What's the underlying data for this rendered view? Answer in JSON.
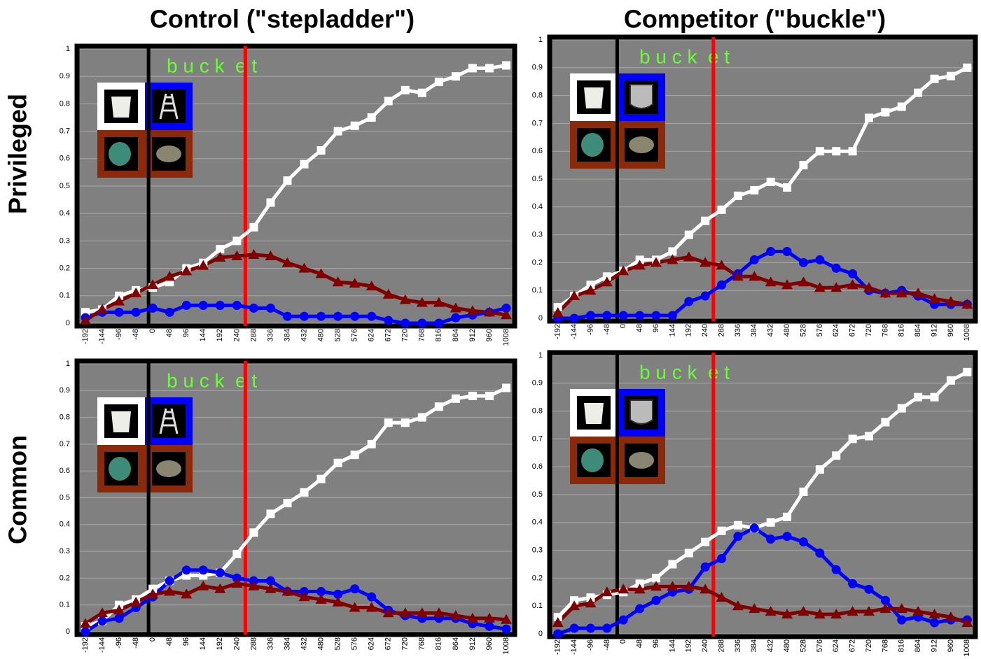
{
  "column_titles": [
    "Control (\"stepladder\")",
    "Competitor (\"buckle\")"
  ],
  "row_labels": [
    "Privileged",
    "Common"
  ],
  "chart_data": [
    {
      "type": "line",
      "x": [
        -192,
        -144,
        -96,
        -48,
        0,
        48,
        96,
        144,
        192,
        240,
        288,
        336,
        384,
        432,
        480,
        528,
        576,
        624,
        672,
        720,
        768,
        816,
        864,
        912,
        960,
        1008
      ],
      "ylim": [
        0,
        1
      ],
      "yticks": [
        0,
        0.1,
        0.2,
        0.3,
        0.4,
        0.5,
        0.6,
        0.7,
        0.8,
        0.9,
        1
      ],
      "grid": true,
      "annotation": {
        "text": "b u c k  e t",
        "color": "#66ff33"
      },
      "vlines": [
        {
          "x": -12,
          "color": "#000000"
        },
        {
          "x": 264,
          "color": "#ff0000"
        }
      ],
      "series": [
        {
          "color": "#ffffff",
          "marker": "square",
          "values": [
            0.04,
            0.05,
            0.1,
            0.12,
            0.13,
            0.15,
            0.2,
            0.22,
            0.27,
            0.3,
            0.35,
            0.44,
            0.52,
            0.58,
            0.63,
            0.7,
            0.72,
            0.75,
            0.81,
            0.85,
            0.84,
            0.88,
            0.9,
            0.93,
            0.93,
            0.94
          ]
        },
        {
          "color": "#0000ff",
          "marker": "circle",
          "values": [
            0.02,
            0.04,
            0.04,
            0.04,
            0.055,
            0.04,
            0.065,
            0.065,
            0.065,
            0.065,
            0.055,
            0.055,
            0.025,
            0.025,
            0.025,
            0.025,
            0.025,
            0.025,
            0.01,
            0,
            0,
            0,
            0.02,
            0.03,
            0.04,
            0.055
          ]
        },
        {
          "color": "#800000",
          "marker": "triangle",
          "values": [
            0.01,
            0.05,
            0.08,
            0.11,
            0.14,
            0.17,
            0.19,
            0.21,
            0.24,
            0.245,
            0.25,
            0.245,
            0.22,
            0.2,
            0.18,
            0.15,
            0.145,
            0.135,
            0.105,
            0.085,
            0.075,
            0.075,
            0.055,
            0.045,
            0.04,
            0.03
          ]
        }
      ]
    },
    {
      "type": "line",
      "x": [
        -192,
        -144,
        -96,
        -48,
        0,
        48,
        96,
        144,
        192,
        240,
        288,
        336,
        384,
        432,
        480,
        528,
        576,
        624,
        672,
        720,
        768,
        816,
        864,
        912,
        960,
        1008
      ],
      "ylim": [
        0,
        1
      ],
      "yticks": [
        0,
        0.1,
        0.2,
        0.3,
        0.4,
        0.5,
        0.6,
        0.7,
        0.8,
        0.9,
        1
      ],
      "grid": true,
      "annotation": {
        "text": "b u c k  e t",
        "color": "#66ff33"
      },
      "vlines": [
        {
          "x": -18,
          "color": "#000000"
        },
        {
          "x": 264,
          "color": "#ff0000"
        }
      ],
      "series": [
        {
          "color": "#ffffff",
          "marker": "square",
          "values": [
            0.04,
            0.08,
            0.12,
            0.15,
            0.17,
            0.21,
            0.21,
            0.24,
            0.3,
            0.35,
            0.39,
            0.44,
            0.46,
            0.49,
            0.47,
            0.55,
            0.6,
            0.6,
            0.6,
            0.72,
            0.74,
            0.76,
            0.81,
            0.86,
            0.87,
            0.9
          ]
        },
        {
          "color": "#0000ff",
          "marker": "circle",
          "values": [
            0,
            0,
            0.01,
            0.01,
            0.01,
            0.01,
            0.01,
            0.01,
            0.06,
            0.08,
            0.12,
            0.16,
            0.21,
            0.24,
            0.24,
            0.2,
            0.21,
            0.18,
            0.16,
            0.1,
            0.09,
            0.1,
            0.08,
            0.05,
            0.05,
            0.05
          ]
        },
        {
          "color": "#800000",
          "marker": "triangle",
          "values": [
            0.02,
            0.08,
            0.1,
            0.13,
            0.17,
            0.19,
            0.2,
            0.21,
            0.22,
            0.2,
            0.19,
            0.15,
            0.15,
            0.13,
            0.12,
            0.13,
            0.11,
            0.11,
            0.12,
            0.11,
            0.09,
            0.09,
            0.09,
            0.07,
            0.06,
            0.05
          ]
        }
      ]
    },
    {
      "type": "line",
      "x": [
        -192,
        -144,
        -96,
        -48,
        0,
        48,
        96,
        144,
        192,
        240,
        288,
        336,
        384,
        432,
        480,
        528,
        576,
        624,
        672,
        720,
        768,
        816,
        864,
        912,
        960,
        1008
      ],
      "ylim": [
        0,
        1
      ],
      "yticks": [
        0,
        0.1,
        0.2,
        0.3,
        0.4,
        0.5,
        0.6,
        0.7,
        0.8,
        0.9,
        1
      ],
      "grid": true,
      "annotation": {
        "text": "b u c k  e t",
        "color": "#66ff33"
      },
      "vlines": [
        {
          "x": -12,
          "color": "#000000"
        },
        {
          "x": 264,
          "color": "#ff0000"
        }
      ],
      "series": [
        {
          "color": "#ffffff",
          "marker": "square",
          "values": [
            0.02,
            0.04,
            0.1,
            0.12,
            0.16,
            0.19,
            0.21,
            0.21,
            0.22,
            0.29,
            0.37,
            0.44,
            0.48,
            0.52,
            0.57,
            0.63,
            0.66,
            0.7,
            0.78,
            0.78,
            0.8,
            0.84,
            0.87,
            0.88,
            0.88,
            0.91
          ]
        },
        {
          "color": "#0000ff",
          "marker": "circle",
          "values": [
            0,
            0.04,
            0.05,
            0.09,
            0.13,
            0.19,
            0.23,
            0.23,
            0.22,
            0.2,
            0.19,
            0.19,
            0.15,
            0.15,
            0.15,
            0.14,
            0.16,
            0.13,
            0.08,
            0.06,
            0.05,
            0.05,
            0.05,
            0.03,
            0.02,
            0.01
          ]
        },
        {
          "color": "#800000",
          "marker": "triangle",
          "values": [
            0.03,
            0.07,
            0.08,
            0.11,
            0.14,
            0.15,
            0.14,
            0.17,
            0.16,
            0.18,
            0.17,
            0.16,
            0.15,
            0.13,
            0.12,
            0.11,
            0.09,
            0.09,
            0.07,
            0.07,
            0.07,
            0.07,
            0.06,
            0.05,
            0.05,
            0.045
          ]
        }
      ]
    },
    {
      "type": "line",
      "x": [
        -192,
        -144,
        -96,
        -48,
        0,
        48,
        96,
        144,
        192,
        240,
        288,
        336,
        384,
        432,
        480,
        528,
        576,
        624,
        672,
        720,
        768,
        816,
        864,
        912,
        960,
        1008
      ],
      "ylim": [
        0,
        1
      ],
      "yticks": [
        0,
        0.1,
        0.2,
        0.3,
        0.4,
        0.5,
        0.6,
        0.7,
        0.8,
        0.9,
        1
      ],
      "grid": true,
      "annotation": {
        "text": "b u c k  e t",
        "color": "#66ff33"
      },
      "vlines": [
        {
          "x": -18,
          "color": "#000000"
        },
        {
          "x": 264,
          "color": "#ff0000"
        }
      ],
      "series": [
        {
          "color": "#ffffff",
          "marker": "square",
          "values": [
            0.06,
            0.12,
            0.13,
            0.14,
            0.15,
            0.18,
            0.2,
            0.25,
            0.29,
            0.33,
            0.37,
            0.39,
            0.38,
            0.4,
            0.42,
            0.51,
            0.59,
            0.64,
            0.7,
            0.71,
            0.76,
            0.81,
            0.85,
            0.85,
            0.91,
            0.94
          ]
        },
        {
          "color": "#0000ff",
          "marker": "circle",
          "values": [
            0,
            0.02,
            0.02,
            0.02,
            0.05,
            0.09,
            0.12,
            0.15,
            0.16,
            0.24,
            0.27,
            0.35,
            0.38,
            0.34,
            0.35,
            0.33,
            0.29,
            0.23,
            0.18,
            0.16,
            0.12,
            0.05,
            0.06,
            0.04,
            0.05,
            0.05
          ]
        },
        {
          "color": "#800000",
          "marker": "triangle",
          "values": [
            0.04,
            0.1,
            0.11,
            0.15,
            0.16,
            0.16,
            0.17,
            0.17,
            0.17,
            0.16,
            0.13,
            0.1,
            0.09,
            0.08,
            0.07,
            0.08,
            0.07,
            0.07,
            0.08,
            0.08,
            0.09,
            0.09,
            0.08,
            0.07,
            0.06,
            0.04
          ]
        }
      ]
    }
  ]
}
